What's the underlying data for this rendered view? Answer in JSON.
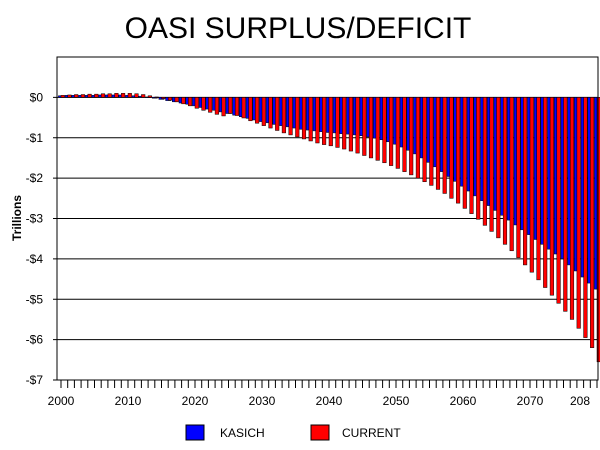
{
  "chart_data": {
    "type": "bar",
    "title": "OASI SURPLUS/DEFICIT",
    "ylabel": "Trillions",
    "xlabel": "",
    "ylim": [
      -7,
      1
    ],
    "y_ticks": [
      {
        "value": 0,
        "label": "$0"
      },
      {
        "value": -1,
        "label": "-$1"
      },
      {
        "value": -2,
        "label": "-$2"
      },
      {
        "value": -3,
        "label": "-$3"
      },
      {
        "value": -4,
        "label": "-$4"
      },
      {
        "value": -5,
        "label": "-$5"
      },
      {
        "value": -6,
        "label": "-$6"
      },
      {
        "value": -7,
        "label": "-$7"
      }
    ],
    "x_ticks": [
      "2000",
      "2010",
      "2020",
      "2030",
      "2040",
      "2050",
      "2060",
      "2070",
      "208"
    ],
    "x_start": 2000,
    "x_end": 2080,
    "grid": true,
    "legend_position": "bottom",
    "series": [
      {
        "name": "KASICH",
        "color": "#0000ff",
        "values": [
          0.04,
          0.05,
          0.05,
          0.05,
          0.05,
          0.05,
          0.06,
          0.06,
          0.06,
          0.06,
          0.05,
          0.04,
          0.03,
          0.01,
          -0.02,
          -0.05,
          -0.08,
          -0.11,
          -0.14,
          -0.17,
          -0.21,
          -0.25,
          -0.29,
          -0.32,
          -0.36,
          -0.4,
          -0.44,
          -0.48,
          -0.52,
          -0.56,
          -0.6,
          -0.63,
          -0.67,
          -0.7,
          -0.73,
          -0.76,
          -0.79,
          -0.81,
          -0.83,
          -0.85,
          -0.87,
          -0.88,
          -0.9,
          -0.91,
          -0.93,
          -0.95,
          -0.98,
          -1.01,
          -1.05,
          -1.1,
          -1.16,
          -1.23,
          -1.31,
          -1.4,
          -1.5,
          -1.61,
          -1.72,
          -1.84,
          -1.96,
          -2.08,
          -2.2,
          -2.32,
          -2.44,
          -2.56,
          -2.68,
          -2.8,
          -2.92,
          -3.04,
          -3.16,
          -3.28,
          -3.4,
          -3.52,
          -3.64,
          -3.76,
          -3.88,
          -4.0,
          -4.15,
          -4.3,
          -4.45,
          -4.6,
          -4.75
        ]
      },
      {
        "name": "CURRENT",
        "color": "#ff0000",
        "values": [
          0.05,
          0.06,
          0.07,
          0.07,
          0.08,
          0.08,
          0.09,
          0.09,
          0.1,
          0.1,
          0.1,
          0.09,
          0.07,
          0.04,
          0.01,
          -0.03,
          -0.07,
          -0.11,
          -0.16,
          -0.21,
          -0.27,
          -0.32,
          -0.37,
          -0.42,
          -0.46,
          -0.4,
          -0.45,
          -0.51,
          -0.58,
          -0.64,
          -0.7,
          -0.76,
          -0.82,
          -0.88,
          -0.93,
          -0.98,
          -1.03,
          -1.08,
          -1.13,
          -1.17,
          -1.2,
          -1.24,
          -1.28,
          -1.33,
          -1.38,
          -1.44,
          -1.5,
          -1.56,
          -1.62,
          -1.69,
          -1.76,
          -1.84,
          -1.92,
          -2.0,
          -2.09,
          -2.18,
          -2.28,
          -2.38,
          -2.5,
          -2.62,
          -2.75,
          -2.88,
          -3.02,
          -3.17,
          -3.32,
          -3.48,
          -3.64,
          -3.8,
          -3.97,
          -4.15,
          -4.33,
          -4.52,
          -4.71,
          -4.9,
          -5.1,
          -5.3,
          -5.5,
          -5.72,
          -5.95,
          -6.2,
          -6.55
        ]
      }
    ]
  }
}
